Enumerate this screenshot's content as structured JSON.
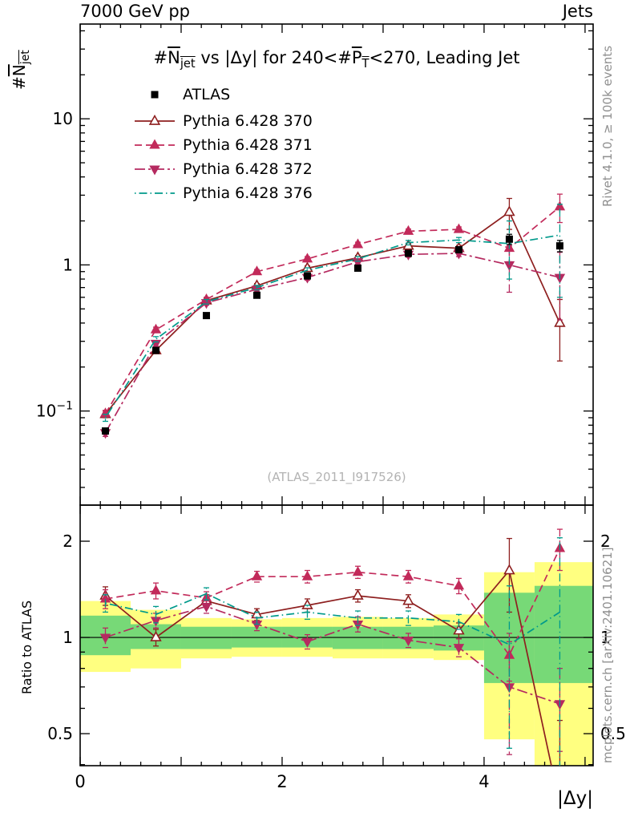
{
  "header": {
    "left": "7000 GeV pp",
    "right": "Jets"
  },
  "title_segments": [
    {
      "t": "#"
    },
    {
      "t": "N",
      "ol": true
    },
    {
      "t": "jet",
      "ol": true,
      "sub": true
    },
    {
      "t": " vs |Δy| for 240<#"
    },
    {
      "t": "P",
      "ol": true
    },
    {
      "t": "T",
      "ol": true,
      "sub": true
    },
    {
      "t": "<270, Leading Jet"
    }
  ],
  "ylabel_main_segments": [
    {
      "t": "#"
    },
    {
      "t": "N",
      "ol": true
    },
    {
      "t": "jet",
      "ol": true,
      "sub": true
    }
  ],
  "ratio_ylabel": "Ratio to ATLAS",
  "xlabel": "|Δy|",
  "side_notes": {
    "top": "Rivet 4.1.0, ≥ 100k events",
    "bottom": "mcplots.cern.ch [arXiv:2401.10621]"
  },
  "watermark": "(ATLAS_2011_I917526)",
  "chart_data": {
    "type": "line",
    "xlabel": "|Δy|",
    "x": [
      0.25,
      0.75,
      1.25,
      1.75,
      2.25,
      2.75,
      3.25,
      3.75,
      4.25,
      4.75
    ],
    "bin_edges": [
      0,
      0.5,
      1,
      1.5,
      2,
      2.5,
      3,
      3.5,
      4,
      4.5,
      5
    ],
    "xlim": [
      0,
      5.08
    ],
    "xticks": [
      {
        "v": 0,
        "label": "0"
      },
      {
        "v": 1
      },
      {
        "v": 2,
        "label": "2"
      },
      {
        "v": 3
      },
      {
        "v": 4,
        "label": "4"
      },
      {
        "v": 5
      }
    ],
    "main_axis": {
      "scale": "log",
      "lim": [
        0.0227,
        44.5
      ],
      "ticks": [
        {
          "v": 10,
          "label": "10"
        },
        {
          "v": 1,
          "label": "1"
        },
        {
          "v": 0.1,
          "label": "10",
          "sup": "−1"
        }
      ]
    },
    "ratio_axis": {
      "scale": "log",
      "lim": [
        0.397,
        2.594
      ],
      "ticks": [
        {
          "v": 2,
          "label": "2"
        },
        {
          "v": 1,
          "label": "1"
        },
        {
          "v": 0.5,
          "label": "0.5"
        }
      ],
      "minor": [
        0.4,
        0.6,
        0.7,
        0.8,
        0.9
      ],
      "ref": 1
    },
    "series": [
      {
        "name": "ATLAS",
        "color": "#000000",
        "marker": "square",
        "line": "none",
        "values": [
          0.073,
          0.26,
          0.45,
          0.62,
          0.84,
          0.95,
          1.2,
          1.27,
          1.5,
          1.35
        ],
        "errors": [
          0.003,
          0.01,
          0.015,
          0.02,
          0.03,
          0.035,
          0.045,
          0.055,
          0.12,
          0.12
        ],
        "ratio_values": null,
        "ratio_errors": null
      },
      {
        "name": "Pythia 6.428 370",
        "color": "#8e1f1f",
        "marker": "triangle-open",
        "line": "solid",
        "values": [
          0.095,
          0.26,
          0.57,
          0.72,
          0.95,
          1.12,
          1.35,
          1.3,
          2.3,
          0.4
        ],
        "errors": [
          0.005,
          0.012,
          0.02,
          0.025,
          0.035,
          0.04,
          0.05,
          0.06,
          0.55,
          0.18
        ],
        "ratio_values": [
          1.35,
          1.0,
          1.3,
          1.18,
          1.26,
          1.35,
          1.3,
          1.05,
          1.62,
          0.3
        ],
        "ratio_errors": [
          0.09,
          0.06,
          0.06,
          0.05,
          0.06,
          0.06,
          0.06,
          0.06,
          0.42,
          0.25
        ]
      },
      {
        "name": "Pythia 6.428 371",
        "color": "#c22a5a",
        "marker": "triangle-up",
        "line": "dashed",
        "values": [
          0.096,
          0.36,
          0.58,
          0.9,
          1.1,
          1.38,
          1.7,
          1.75,
          1.3,
          2.5
        ],
        "errors": [
          0.005,
          0.015,
          0.02,
          0.03,
          0.04,
          0.05,
          0.06,
          0.07,
          0.25,
          0.55
        ],
        "ratio_values": [
          1.32,
          1.4,
          1.33,
          1.55,
          1.55,
          1.6,
          1.55,
          1.45,
          0.88,
          1.9
        ],
        "ratio_errors": [
          0.09,
          0.08,
          0.06,
          0.06,
          0.07,
          0.07,
          0.07,
          0.08,
          0.15,
          0.28
        ]
      },
      {
        "name": "Pythia 6.428 372",
        "color": "#b52a60",
        "marker": "triangle-down",
        "line": "dashdot",
        "values": [
          0.071,
          0.29,
          0.55,
          0.68,
          0.82,
          1.05,
          1.18,
          1.2,
          1.0,
          0.82
        ],
        "errors": [
          0.004,
          0.012,
          0.02,
          0.025,
          0.035,
          0.04,
          0.05,
          0.06,
          0.35,
          0.4
        ],
        "ratio_values": [
          1.0,
          1.13,
          1.25,
          1.1,
          0.97,
          1.1,
          0.98,
          0.93,
          0.7,
          0.62
        ],
        "ratio_errors": [
          0.07,
          0.06,
          0.06,
          0.05,
          0.05,
          0.06,
          0.05,
          0.06,
          0.27,
          0.18
        ]
      },
      {
        "name": "Pythia 6.428 376",
        "color": "#009a8b",
        "marker": "none",
        "line": "dashdotdot",
        "values": [
          0.09,
          0.31,
          0.56,
          0.7,
          0.92,
          1.1,
          1.42,
          1.48,
          1.4,
          1.6
        ],
        "errors": [
          0.005,
          0.013,
          0.02,
          0.025,
          0.035,
          0.04,
          0.05,
          0.06,
          0.6,
          1.0
        ],
        "ratio_values": [
          1.28,
          1.18,
          1.37,
          1.15,
          1.2,
          1.15,
          1.15,
          1.12,
          0.95,
          1.2
        ],
        "ratio_errors": [
          0.08,
          0.07,
          0.06,
          0.05,
          0.06,
          0.06,
          0.06,
          0.06,
          0.5,
          0.85
        ]
      }
    ],
    "ratio_bands": {
      "yellow": {
        "color": "#ffff80",
        "lo": [
          0.78,
          0.8,
          0.86,
          0.87,
          0.87,
          0.86,
          0.86,
          0.85,
          0.48,
          0.38
        ],
        "hi": [
          1.3,
          1.22,
          1.15,
          1.14,
          1.15,
          1.16,
          1.15,
          1.18,
          1.6,
          1.72
        ]
      },
      "green": {
        "color": "#77d977",
        "lo": [
          0.88,
          0.92,
          0.92,
          0.93,
          0.93,
          0.92,
          0.92,
          0.91,
          0.72,
          0.72
        ],
        "hi": [
          1.17,
          1.1,
          1.08,
          1.08,
          1.08,
          1.08,
          1.08,
          1.09,
          1.38,
          1.45
        ]
      }
    }
  }
}
